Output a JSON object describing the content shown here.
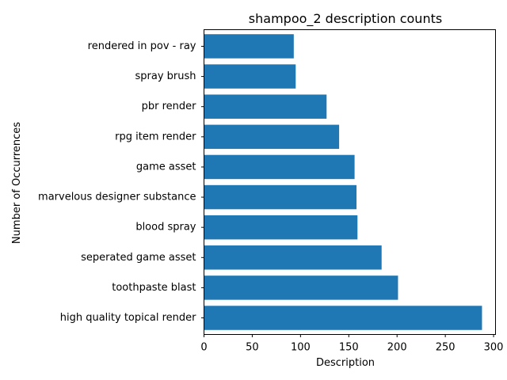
{
  "chart_data": {
    "type": "bar",
    "orientation": "horizontal",
    "title": "shampoo_2 description counts",
    "xlabel": "Description",
    "ylabel": "Number of Occurrences",
    "categories": [
      "high quality topical render",
      "toothpaste blast",
      "seperated game asset",
      "blood spray",
      "marvelous designer substance",
      "game asset",
      "rpg item render",
      "pbr render",
      "spray brush",
      "rendered in pov - ray"
    ],
    "values": [
      288,
      201,
      184,
      159,
      158,
      156,
      140,
      127,
      95,
      93
    ],
    "xlim": [
      0,
      302
    ],
    "xticks": [
      0,
      50,
      100,
      150,
      200,
      250,
      300
    ],
    "bar_color": "#1f77b4",
    "grid": false,
    "legend": false
  }
}
